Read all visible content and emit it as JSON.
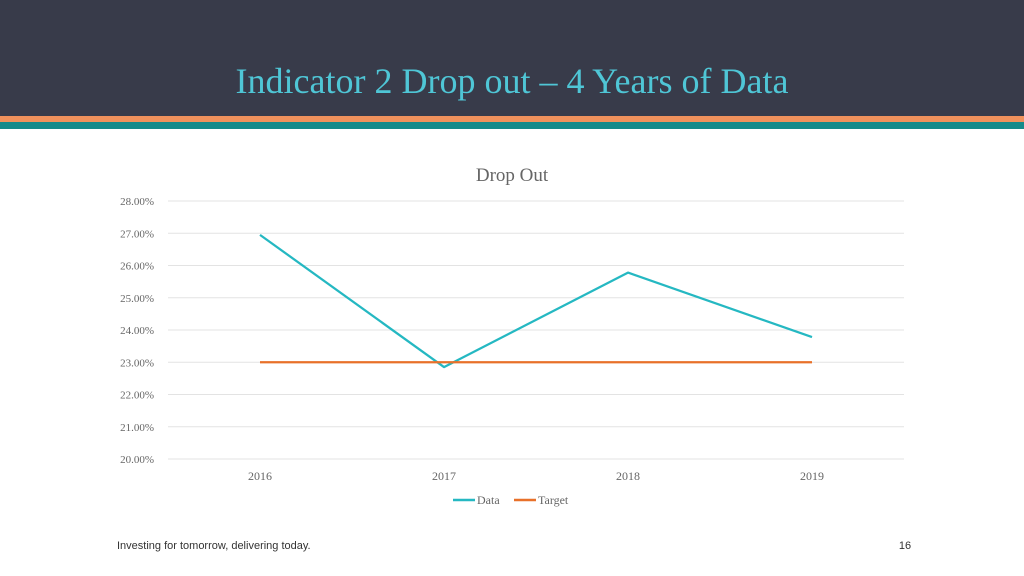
{
  "slide": {
    "title": "Indicator 2 Drop out – 4 Years of Data",
    "footer": "Investing for tomorrow, delivering today.",
    "page_number": "16"
  },
  "colors": {
    "header_bg": "#383b4a",
    "title": "#4fc6d6",
    "stripe_orange": "#f0915c",
    "stripe_teal": "#148a8a",
    "data_series": "#25b8c2",
    "target_series": "#e8712a"
  },
  "chart_data": {
    "type": "line",
    "title": "Drop Out",
    "categories": [
      "2016",
      "2017",
      "2018",
      "2019"
    ],
    "series": [
      {
        "name": "Data",
        "values": [
          26.95,
          22.85,
          25.78,
          23.78
        ]
      },
      {
        "name": "Target",
        "values": [
          23.0,
          23.0,
          23.0,
          23.0
        ]
      }
    ],
    "ylim": [
      20,
      28
    ],
    "yticks": [
      28,
      27,
      26,
      25,
      24,
      23,
      22,
      21,
      20
    ],
    "ytick_labels": [
      "28.00%",
      "27.00%",
      "26.00%",
      "25.00%",
      "24.00%",
      "23.00%",
      "22.00%",
      "21.00%",
      "20.00%"
    ],
    "grid": true,
    "legend_position": "bottom"
  }
}
